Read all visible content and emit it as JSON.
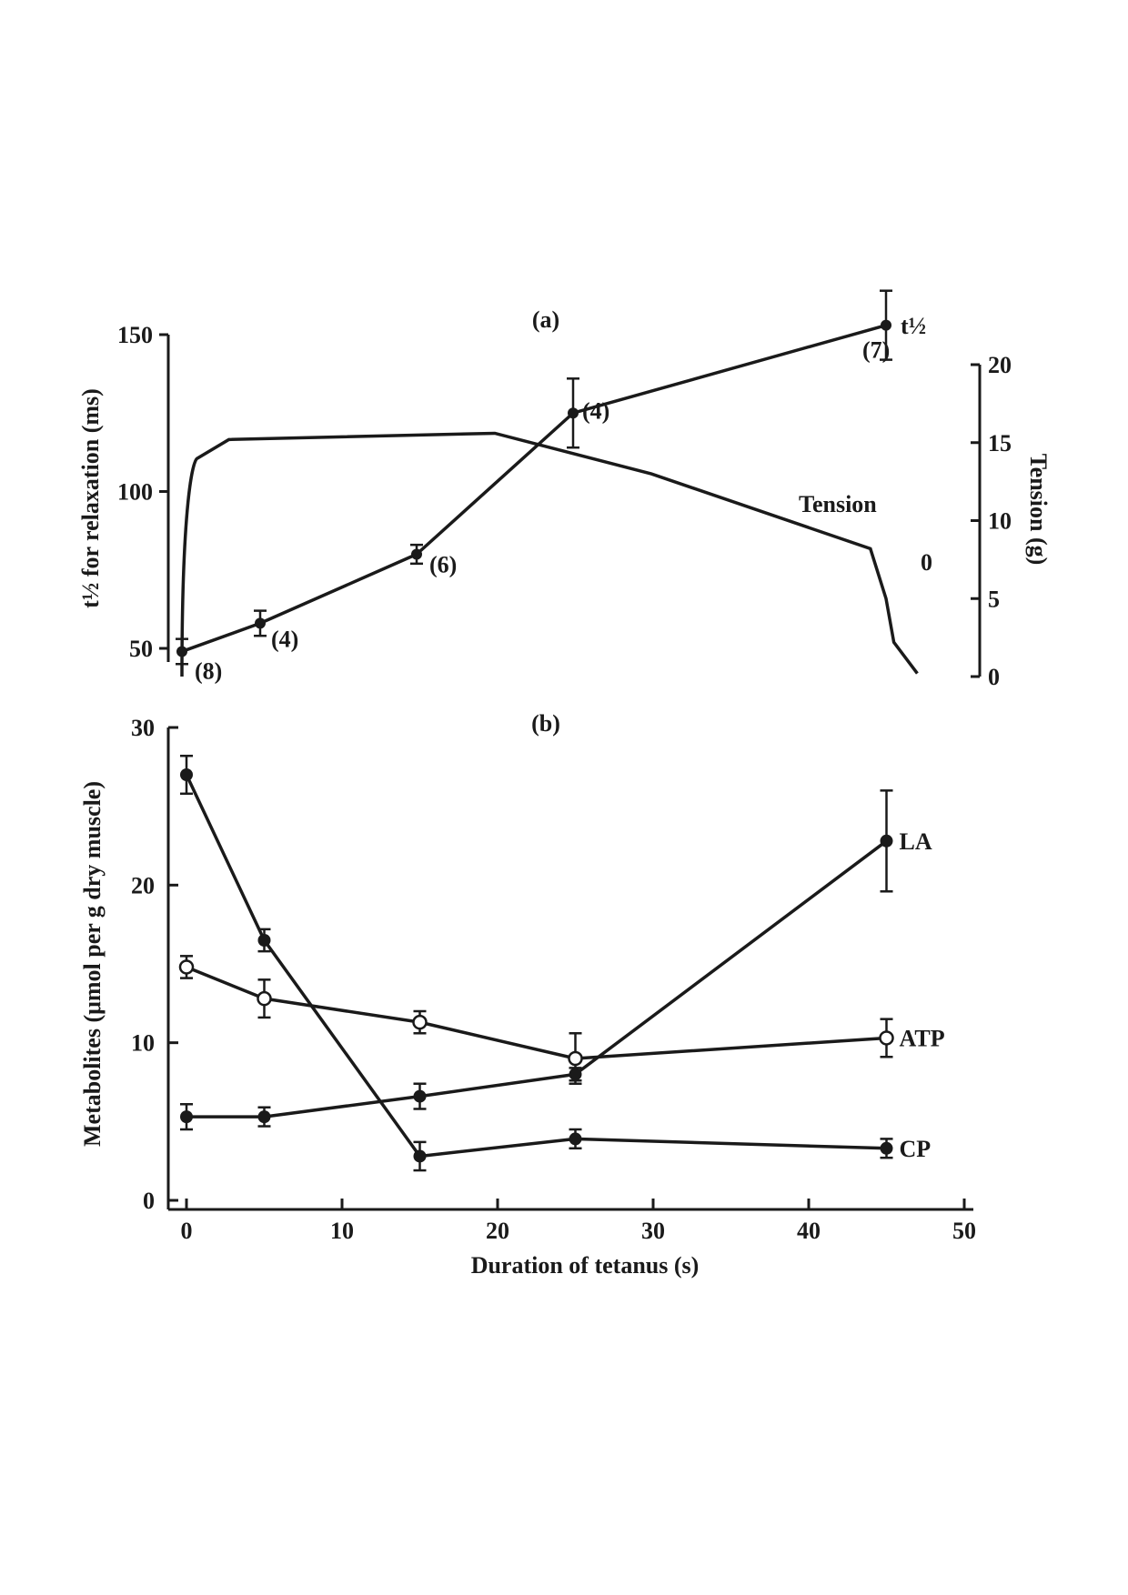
{
  "chart_data": [
    {
      "type": "line",
      "panel": "(a)",
      "x": [
        0,
        5,
        15,
        25,
        45
      ],
      "series": [
        {
          "name": "t½",
          "values": [
            49,
            58,
            80,
            125,
            153
          ],
          "err": [
            4,
            4,
            3,
            11,
            11
          ],
          "counts": [
            "(8)",
            "(4)",
            "(6)",
            "(4)",
            "(7)"
          ]
        },
        {
          "name": "Tension",
          "x": [
            0,
            1,
            3,
            20,
            30,
            44,
            45,
            45.5,
            47
          ],
          "values": [
            0,
            14,
            15.2,
            15.6,
            13,
            8.2,
            5,
            2.2,
            0.2
          ]
        }
      ],
      "ylabel": "t½ for relaxation (ms)",
      "y2label": "Tension (g)",
      "ylim": [
        50,
        150
      ],
      "yticks": [
        50,
        100,
        150
      ],
      "y2lim": [
        0,
        20
      ],
      "y2ticks": [
        0,
        5,
        10,
        15,
        20
      ],
      "xlim": [
        0,
        50
      ],
      "label_t": "t½",
      "label_tension": "Tension",
      "label_zero": "0"
    },
    {
      "type": "line",
      "panel": "(b)",
      "x": [
        0,
        5,
        15,
        25,
        45
      ],
      "series": [
        {
          "name": "LA",
          "values": [
            5.3,
            5.3,
            6.6,
            8,
            22.8
          ],
          "err": [
            0.8,
            0.6,
            0.8,
            0.4,
            3.2
          ]
        },
        {
          "name": "ATP",
          "values": [
            14.8,
            12.8,
            11.3,
            9,
            10.3
          ],
          "err": [
            0.7,
            1.2,
            0.7,
            1.6,
            1.2
          ]
        },
        {
          "name": "CP",
          "values": [
            27,
            16.5,
            2.8,
            3.9,
            3.3
          ],
          "err": [
            1.2,
            0.7,
            0.9,
            0.6,
            0.6
          ]
        }
      ],
      "ylabel": "Metabolites (μmol per g dry muscle)",
      "xlabel": "Duration of tetanus (s)",
      "ylim": [
        0,
        30
      ],
      "yticks": [
        0,
        10,
        20,
        30
      ],
      "xlim": [
        0,
        50
      ],
      "xticks": [
        0,
        10,
        20,
        30,
        40,
        50
      ]
    }
  ]
}
